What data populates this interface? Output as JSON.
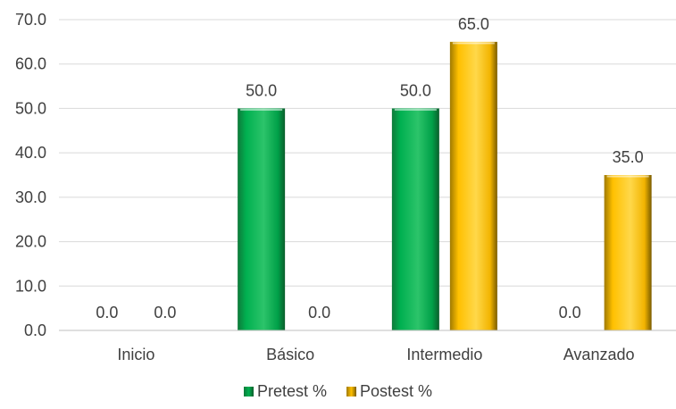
{
  "chart_data": {
    "type": "bar",
    "categories": [
      "Inicio",
      "Básico",
      "Intermedio",
      "Avanzado"
    ],
    "series": [
      {
        "name": "Pretest %",
        "values": [
          0.0,
          50.0,
          50.0,
          0.0
        ],
        "color": "#00B050",
        "dark": "#0E7A3A"
      },
      {
        "name": "Postest %",
        "values": [
          0.0,
          0.0,
          65.0,
          35.0
        ],
        "color": "#FFC000",
        "dark": "#A07A00"
      }
    ],
    "ylim": [
      0,
      70
    ],
    "yticks": [
      "0.0",
      "10.0",
      "20.0",
      "30.0",
      "40.0",
      "50.0",
      "60.0",
      "70.0"
    ],
    "grid": true,
    "legend_position": "bottom"
  }
}
